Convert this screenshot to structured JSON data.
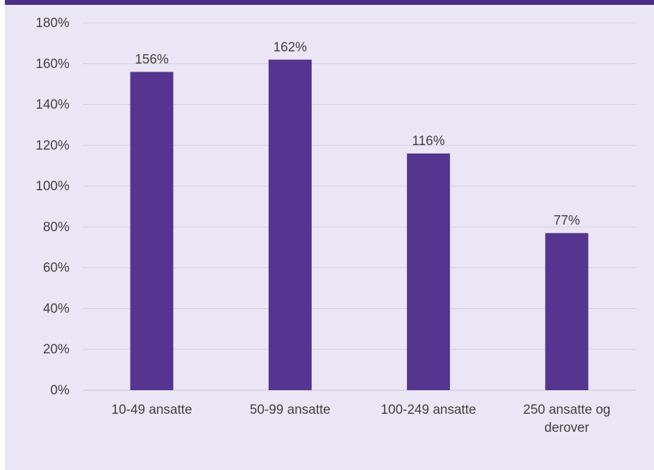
{
  "chart_data": {
    "type": "bar",
    "categories": [
      [
        "10-49 ansatte"
      ],
      [
        "50-99 ansatte"
      ],
      [
        "100-249 ansatte"
      ],
      [
        "250 ansatte og",
        "derover"
      ]
    ],
    "values": [
      156,
      162,
      116,
      77
    ],
    "data_labels": [
      "156%",
      "162%",
      "116%",
      "77%"
    ],
    "ylim": [
      0,
      180
    ],
    "y_ticks": [
      0,
      20,
      40,
      60,
      80,
      100,
      120,
      140,
      160,
      180
    ],
    "y_tick_labels": [
      "0%",
      "20%",
      "40%",
      "60%",
      "80%",
      "100%",
      "120%",
      "140%",
      "160%",
      "180%"
    ],
    "grid": true,
    "legend": "none"
  },
  "colors": {
    "bar": "#553590",
    "background": "#ebe6f5",
    "top_band": "#4b2f86",
    "gridline": "#d5cfe2",
    "text": "#404040"
  }
}
